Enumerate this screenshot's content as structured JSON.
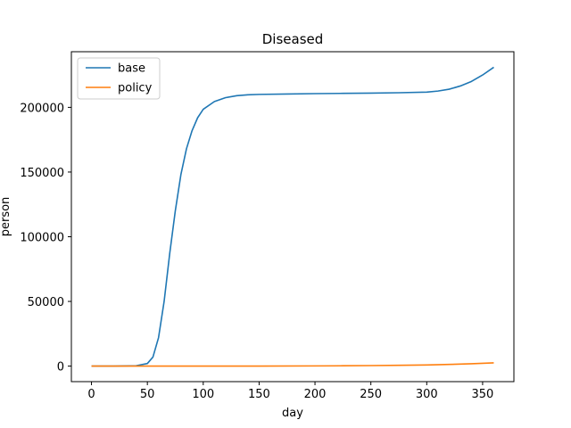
{
  "chart_data": {
    "type": "line",
    "title": "Diseased",
    "xlabel": "day",
    "ylabel": "person",
    "xlim": [
      -18,
      378
    ],
    "ylim": [
      -12000,
      243000
    ],
    "x_ticks": [
      0,
      50,
      100,
      150,
      200,
      250,
      300,
      350
    ],
    "y_ticks": [
      0,
      50000,
      100000,
      150000,
      200000
    ],
    "legend_position": "top-left",
    "grid": false,
    "series": [
      {
        "name": "base",
        "color": "#1f77b4",
        "x": [
          0,
          20,
          40,
          50,
          55,
          60,
          65,
          70,
          75,
          80,
          85,
          90,
          95,
          100,
          110,
          120,
          130,
          140,
          150,
          175,
          200,
          225,
          250,
          275,
          300,
          310,
          320,
          330,
          340,
          350,
          360
        ],
        "y": [
          0,
          0,
          300,
          2000,
          7000,
          22000,
          50000,
          87000,
          120000,
          148000,
          168000,
          182000,
          192000,
          198500,
          204500,
          207500,
          209000,
          209700,
          210000,
          210300,
          210600,
          210800,
          211000,
          211300,
          211800,
          212600,
          214000,
          216500,
          220000,
          225000,
          231000
        ]
      },
      {
        "name": "policy",
        "color": "#ff7f0e",
        "x": [
          0,
          50,
          100,
          150,
          200,
          225,
          250,
          275,
          300,
          320,
          340,
          360
        ],
        "y": [
          0,
          0,
          0,
          50,
          150,
          250,
          400,
          600,
          900,
          1300,
          1800,
          2500
        ]
      }
    ]
  }
}
